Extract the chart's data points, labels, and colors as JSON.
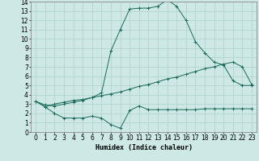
{
  "background_color": "#cde8e5",
  "grid_color": "#aed0cc",
  "line_color": "#1a6b5a",
  "xlim": [
    -0.5,
    23.5
  ],
  "ylim": [
    0,
    14
  ],
  "xticks": [
    0,
    1,
    2,
    3,
    4,
    5,
    6,
    7,
    8,
    9,
    10,
    11,
    12,
    13,
    14,
    15,
    16,
    17,
    18,
    19,
    20,
    21,
    22,
    23
  ],
  "yticks": [
    0,
    1,
    2,
    3,
    4,
    5,
    6,
    7,
    8,
    9,
    10,
    11,
    12,
    13,
    14
  ],
  "line1_x": [
    0,
    1,
    2,
    3,
    4,
    5,
    6,
    7,
    8,
    9,
    10,
    11,
    12,
    13,
    14,
    15,
    16,
    17,
    18,
    19,
    20,
    21,
    22,
    23
  ],
  "line1_y": [
    3.3,
    2.7,
    2.0,
    1.5,
    1.5,
    1.5,
    1.7,
    1.5,
    0.8,
    0.4,
    2.3,
    2.8,
    2.4,
    2.4,
    2.4,
    2.4,
    2.4,
    2.4,
    2.5,
    2.5,
    2.5,
    2.5,
    2.5,
    2.5
  ],
  "line2_x": [
    0,
    1,
    2,
    3,
    4,
    5,
    6,
    7,
    8,
    9,
    10,
    11,
    12,
    13,
    14,
    15,
    16,
    17,
    18,
    19,
    20,
    21,
    22,
    23
  ],
  "line2_y": [
    3.3,
    2.7,
    3.0,
    3.2,
    3.4,
    3.5,
    3.7,
    4.2,
    8.7,
    11.0,
    13.2,
    13.3,
    13.3,
    13.5,
    14.2,
    13.5,
    12.0,
    9.7,
    8.5,
    7.5,
    7.2,
    5.5,
    5.0,
    5.0
  ],
  "line3_x": [
    0,
    1,
    2,
    3,
    4,
    5,
    6,
    7,
    8,
    9,
    10,
    11,
    12,
    13,
    14,
    15,
    16,
    17,
    18,
    19,
    20,
    21,
    22,
    23
  ],
  "line3_y": [
    3.3,
    2.9,
    2.8,
    3.0,
    3.2,
    3.4,
    3.7,
    3.9,
    4.1,
    4.3,
    4.6,
    4.9,
    5.1,
    5.4,
    5.7,
    5.9,
    6.2,
    6.5,
    6.8,
    7.0,
    7.3,
    7.5,
    7.0,
    5.1
  ],
  "xlabel": "Humidex (Indice chaleur)",
  "xlabel_fontsize": 6,
  "tick_fontsize": 5.5
}
